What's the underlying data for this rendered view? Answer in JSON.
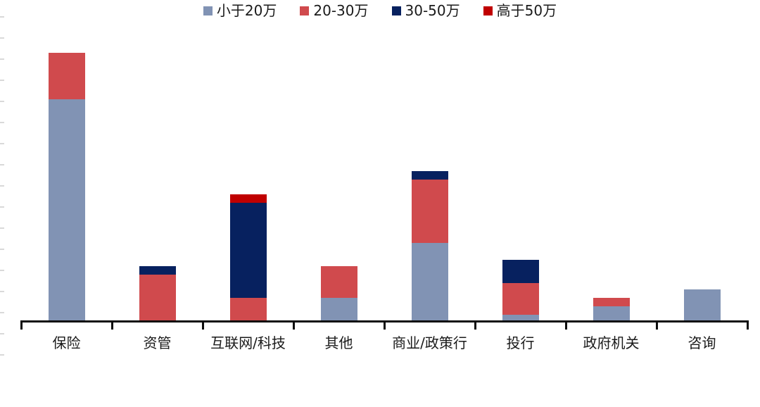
{
  "chart_data": {
    "type": "bar",
    "stacked": true,
    "title": "",
    "xlabel": "",
    "ylabel": "",
    "value_unit": "gridline-units (y-axis tick labels not visible in image; 1 unit = one minor tick interval)",
    "categories": [
      "保险",
      "资管",
      "互联网/科技",
      "其他",
      "商业/政策行",
      "投行",
      "政府机关",
      "咨询"
    ],
    "series": [
      {
        "name": "小于20万",
        "color": "#8193b4",
        "values": [
          10.5,
          0,
          0,
          1.1,
          3.7,
          0.3,
          0.7,
          1.5
        ]
      },
      {
        "name": "20-30万",
        "color": "#d04a4d",
        "values": [
          2.2,
          2.2,
          1.1,
          1.5,
          3.0,
          1.5,
          0.4,
          0
        ]
      },
      {
        "name": "30-50万",
        "color": "#07215f",
        "values": [
          0,
          0.4,
          4.5,
          0,
          0.4,
          1.1,
          0,
          0
        ]
      },
      {
        "name": "高于50万",
        "color": "#c00000",
        "values": [
          0,
          0,
          0.4,
          0,
          0,
          0,
          0,
          0
        ]
      }
    ],
    "ylim": [
      0,
      14.4
    ],
    "grid": "minor y-ticks only, unlabeled, at left edge",
    "legend_position": "bottom-center"
  },
  "axis": {
    "line_color": "#0d0d0d",
    "minor_tick_color": "#d9d9d9",
    "text_color": "#1a1a1a",
    "background": "#ffffff"
  }
}
